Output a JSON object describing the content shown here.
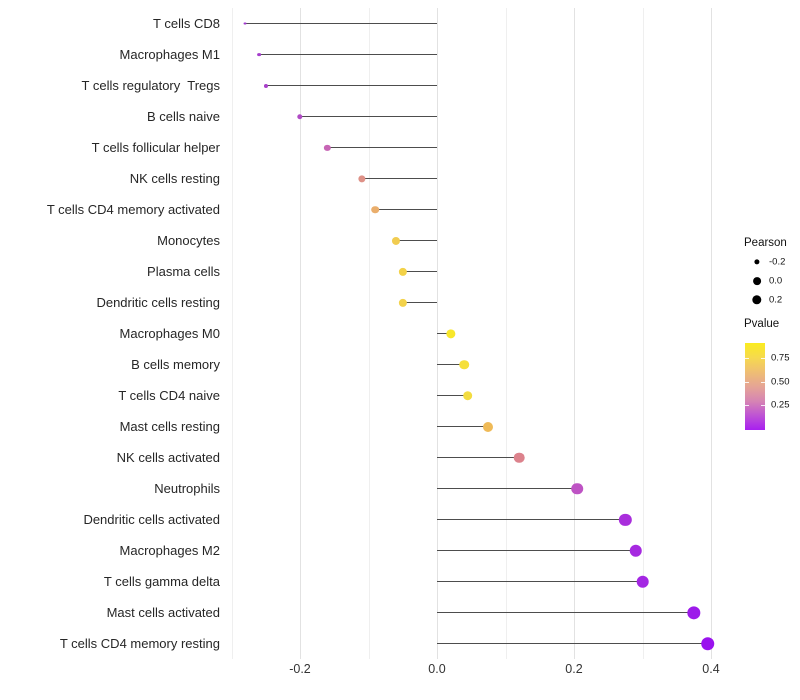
{
  "chart_data": {
    "type": "lollipop",
    "title": "",
    "xlabel": "",
    "ylabel": "",
    "orientation": "horizontal",
    "baseline": 0,
    "grid": "on",
    "background": "#ffffff",
    "x_axis": {
      "range": [
        -0.315,
        0.435
      ],
      "ticks": [
        -0.2,
        0.0,
        0.2,
        0.4
      ],
      "tick_labels": [
        "-0.2",
        "0.0",
        "0.2",
        "0.4"
      ],
      "minor_gridlines": [
        -0.3,
        -0.1,
        0.1,
        0.3
      ]
    },
    "points": [
      {
        "label": "T cells CD8",
        "pearson": -0.28,
        "pvalue_approx": 0.12,
        "color": "#A139CE"
      },
      {
        "label": "Macrophages M1",
        "pearson": -0.26,
        "pvalue_approx": 0.14,
        "color": "#A53CCC"
      },
      {
        "label": "T cells regulatory  Tregs",
        "pearson": -0.25,
        "pvalue_approx": 0.15,
        "color": "#A940CA"
      },
      {
        "label": "B cells naive",
        "pearson": -0.2,
        "pvalue_approx": 0.19,
        "color": "#B04BC5"
      },
      {
        "label": "T cells follicular helper",
        "pearson": -0.16,
        "pvalue_approx": 0.32,
        "color": "#C765B5"
      },
      {
        "label": "NK cells resting",
        "pearson": -0.11,
        "pvalue_approx": 0.5,
        "color": "#DE9187"
      },
      {
        "label": "T cells CD4 memory activated",
        "pearson": -0.09,
        "pvalue_approx": 0.63,
        "color": "#EAAE6C"
      },
      {
        "label": "Monocytes",
        "pearson": -0.06,
        "pvalue_approx": 0.74,
        "color": "#F1CC50"
      },
      {
        "label": "Plasma cells",
        "pearson": -0.05,
        "pvalue_approx": 0.77,
        "color": "#F3D248"
      },
      {
        "label": "Dendritic cells resting",
        "pearson": -0.05,
        "pvalue_approx": 0.77,
        "color": "#F3D24A"
      },
      {
        "label": "Macrophages M0",
        "pearson": 0.02,
        "pvalue_approx": 0.88,
        "color": "#F8E72B"
      },
      {
        "label": "B cells memory",
        "pearson": 0.04,
        "pvalue_approx": 0.82,
        "color": "#F5DF3A"
      },
      {
        "label": "T cells CD4 naive",
        "pearson": 0.045,
        "pvalue_approx": 0.8,
        "color": "#F3DC40"
      },
      {
        "label": "Mast cells resting",
        "pearson": 0.075,
        "pvalue_approx": 0.67,
        "color": "#EFBA57"
      },
      {
        "label": "NK cells activated",
        "pearson": 0.12,
        "pvalue_approx": 0.47,
        "color": "#DC828C"
      },
      {
        "label": "Neutrophils",
        "pearson": 0.205,
        "pvalue_approx": 0.26,
        "color": "#BE53C4"
      },
      {
        "label": "Dendritic cells activated",
        "pearson": 0.275,
        "pvalue_approx": 0.13,
        "color": "#A92EDC"
      },
      {
        "label": "Macrophages M2",
        "pearson": 0.29,
        "pvalue_approx": 0.11,
        "color": "#A629E0"
      },
      {
        "label": "T cells gamma delta",
        "pearson": 0.3,
        "pvalue_approx": 0.1,
        "color": "#A427E3"
      },
      {
        "label": "Mast cells activated",
        "pearson": 0.375,
        "pvalue_approx": 0.06,
        "color": "#9D1AEA"
      },
      {
        "label": "T cells CD4 memory resting",
        "pearson": 0.395,
        "pvalue_approx": 0.04,
        "color": "#9A12EE"
      }
    ],
    "legend_pearson": {
      "title": "Pearson",
      "items": [
        {
          "label": "-0.2",
          "value": -0.2
        },
        {
          "label": "0.0",
          "value": 0.0
        },
        {
          "label": "0.2",
          "value": 0.2
        }
      ]
    },
    "legend_pvalue": {
      "title": "Pvalue",
      "tick_labels": [
        "0.75",
        "0.50",
        "0.25"
      ],
      "gradient_low_color": "#A81FF0",
      "gradient_high_color": "#FAEC1E",
      "gradient_stops": [
        "#A81FF0",
        "#BE53D4",
        "#D685B3",
        "#E5A495",
        "#EFBE73",
        "#F6DA4E",
        "#FAEC20"
      ]
    },
    "colors": {
      "stem": "#4D4D4D",
      "grid_major": "#E2E2E2",
      "grid_minor": "#EFEFEF",
      "axis_text": "#333333",
      "category_text": "#262626",
      "legend_key": "#000000"
    }
  }
}
